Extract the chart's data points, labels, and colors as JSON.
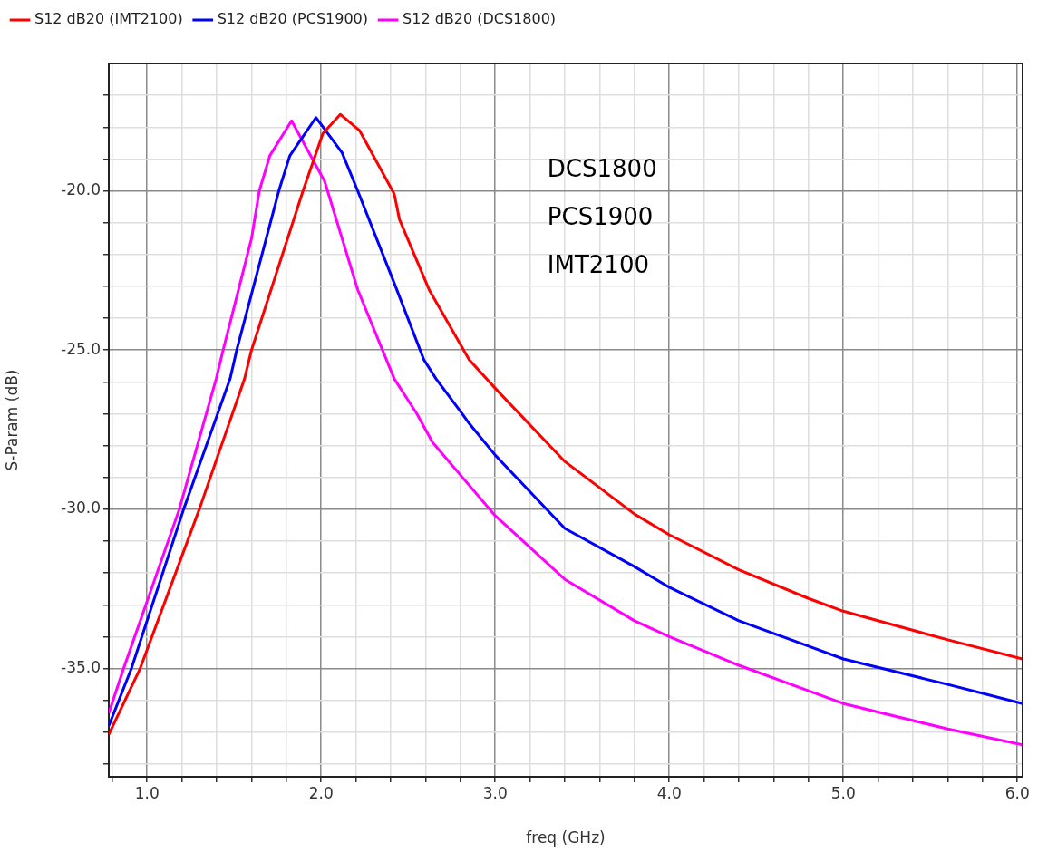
{
  "chart_data": {
    "type": "line",
    "xlabel": "freq (GHz)",
    "ylabel": "S-Param (dB)",
    "annotations": [
      "DCS1800",
      "PCS1900",
      "IMT2100"
    ],
    "xlim": [
      0.78,
      6.03
    ],
    "ylim": [
      -38.4,
      -16.0
    ],
    "xticks": [
      {
        "value": 0.8,
        "label": null
      },
      {
        "value": 1,
        "label": "1.0"
      },
      {
        "value": 1.2,
        "label": null
      },
      {
        "value": 1.4,
        "label": null
      },
      {
        "value": 1.6,
        "label": null
      },
      {
        "value": 1.8,
        "label": null
      },
      {
        "value": 2,
        "label": "2.0"
      },
      {
        "value": 2.2,
        "label": null
      },
      {
        "value": 2.4,
        "label": null
      },
      {
        "value": 2.6,
        "label": null
      },
      {
        "value": 2.8,
        "label": null
      },
      {
        "value": 3,
        "label": "3.0"
      },
      {
        "value": 3.2,
        "label": null
      },
      {
        "value": 3.4,
        "label": null
      },
      {
        "value": 3.6,
        "label": null
      },
      {
        "value": 3.8,
        "label": null
      },
      {
        "value": 4,
        "label": "4.0"
      },
      {
        "value": 4.2,
        "label": null
      },
      {
        "value": 4.4,
        "label": null
      },
      {
        "value": 4.6,
        "label": null
      },
      {
        "value": 4.8,
        "label": null
      },
      {
        "value": 5,
        "label": "5.0"
      },
      {
        "value": 5.2,
        "label": null
      },
      {
        "value": 5.4,
        "label": null
      },
      {
        "value": 5.6,
        "label": null
      },
      {
        "value": 5.8,
        "label": null
      },
      {
        "value": 6,
        "label": "6.0"
      }
    ],
    "yticks": [
      {
        "value": -38,
        "label": null
      },
      {
        "value": -37,
        "label": null
      },
      {
        "value": -36,
        "label": null
      },
      {
        "value": -35,
        "label": "-35.0"
      },
      {
        "value": -34,
        "label": null
      },
      {
        "value": -33,
        "label": null
      },
      {
        "value": -32,
        "label": null
      },
      {
        "value": -31,
        "label": null
      },
      {
        "value": -30,
        "label": "-30.0"
      },
      {
        "value": -29,
        "label": null
      },
      {
        "value": -28,
        "label": null
      },
      {
        "value": -27,
        "label": null
      },
      {
        "value": -26,
        "label": null
      },
      {
        "value": -25,
        "label": "-25.0"
      },
      {
        "value": -24,
        "label": null
      },
      {
        "value": -23,
        "label": null
      },
      {
        "value": -22,
        "label": null
      },
      {
        "value": -21,
        "label": null
      },
      {
        "value": -20,
        "label": "-20.0"
      },
      {
        "value": -19,
        "label": null
      },
      {
        "value": -18,
        "label": null
      },
      {
        "value": -17,
        "label": null
      }
    ],
    "grid": true,
    "legend": "top left",
    "marker": "none",
    "line_style": "solid",
    "series": [
      {
        "name": "S12 dB20 (IMT2100)",
        "color": "#ff0000",
        "x": [
          0.78,
          0.96,
          1.3,
          1.56,
          1.6,
          1.896,
          2.01,
          2.11,
          2.22,
          2.42,
          2.45,
          2.62,
          2.85,
          3.0,
          3.4,
          3.8,
          4.0,
          4.4,
          4.8,
          5.0,
          5.6,
          6.03
        ],
        "values": [
          -37.07,
          -35,
          -30,
          -25.9,
          -25,
          -20,
          -18.2,
          -17.6,
          -18.1,
          -20.1,
          -20.9,
          -23.1,
          -25.3,
          -26.2,
          -28.5,
          -30.15,
          -30.8,
          -31.9,
          -32.8,
          -33.2,
          -34.1,
          -34.7
        ]
      },
      {
        "name": "S12 dB20 (PCS1900)",
        "color": "#0000ff",
        "x": [
          0.78,
          0.91,
          1.21,
          1.477,
          1.515,
          1.757,
          1.82,
          1.97,
          2.12,
          2.21,
          2.42,
          2.59,
          2.66,
          2.81,
          2.85,
          3.0,
          3.4,
          3.8,
          4.0,
          4.4,
          4.8,
          5.0,
          5.6,
          6.03
        ],
        "values": [
          -36.8,
          -35,
          -30,
          -25.9,
          -25,
          -20,
          -18.9,
          -17.7,
          -18.8,
          -20,
          -22.9,
          -25.3,
          -25.9,
          -27,
          -27.3,
          -28.3,
          -30.6,
          -31.8,
          -32.45,
          -33.5,
          -34.3,
          -34.7,
          -35.5,
          -36.1
        ]
      },
      {
        "name": "S12 dB20 (DCS1800)",
        "color": "#ff00ff",
        "x": [
          0.78,
          0.865,
          1.185,
          1.397,
          1.437,
          1.6,
          1.645,
          1.705,
          1.83,
          2.02,
          2.21,
          2.42,
          2.55,
          2.64,
          3.0,
          3.4,
          3.8,
          4.0,
          4.4,
          4.8,
          5.0,
          5.6,
          6.03
        ],
        "values": [
          -36.4,
          -35,
          -30,
          -25.9,
          -25,
          -21.5,
          -20,
          -18.9,
          -17.8,
          -19.7,
          -23.1,
          -25.9,
          -27,
          -27.9,
          -30.2,
          -32.2,
          -33.5,
          -34,
          -34.9,
          -35.7,
          -36.1,
          -36.9,
          -37.4
        ]
      }
    ]
  }
}
